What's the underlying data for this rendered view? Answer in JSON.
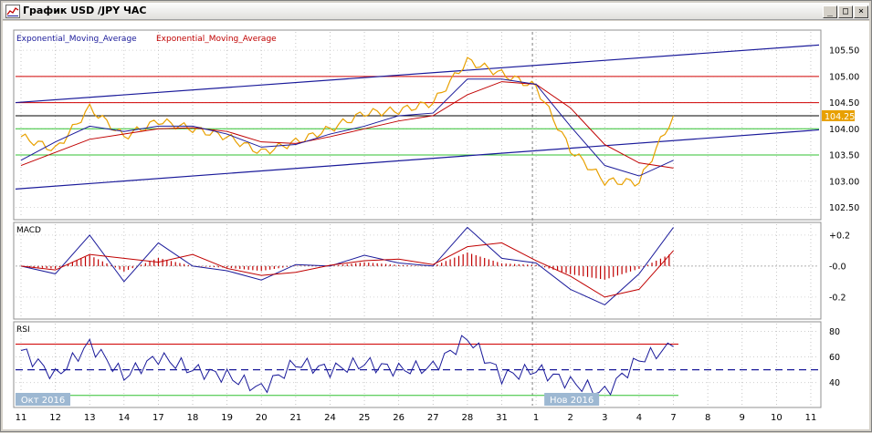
{
  "window": {
    "title": "График USD /JPY  ЧАС",
    "min_glyph": "_",
    "max_glyph": "□",
    "close_glyph": "×"
  },
  "colors": {
    "price": "#e8a000",
    "ema_fast": "#1a1a9a",
    "ema_slow": "#c00000",
    "channel": "#1a1a9a",
    "level_red": "#d00000",
    "level_green": "#30c030",
    "current_price_bg": "#e8a000",
    "rsi_line": "#1a1a9a",
    "rsi_overbought": "#c000c0",
    "rsi_oversold": "#00b000",
    "macd_hist": "#c00000"
  },
  "price_panel": {
    "legend_fast": "Exponential_Moving_Average",
    "legend_slow": "Exponential_Moving_Average",
    "y_ticks": [
      "105.50",
      "105.00",
      "104.50",
      "104.00",
      "103.50",
      "103.00",
      "102.50"
    ],
    "y_tick_values": [
      105.5,
      105.0,
      104.5,
      104.0,
      103.5,
      103.0,
      102.5
    ],
    "current_price": "104.25",
    "current_price_value": 104.25,
    "ylim": [
      102.3,
      105.85
    ],
    "red_levels": [
      105.0,
      104.5
    ],
    "black_level": 104.25,
    "green_levels": [
      104.0,
      103.5
    ]
  },
  "macd_panel": {
    "label": "MACD",
    "y_ticks": [
      "+0.2",
      "-0.0",
      "-0.2"
    ],
    "y_tick_values": [
      0.2,
      0.0,
      -0.2
    ],
    "ylim": [
      -0.33,
      0.27
    ]
  },
  "rsi_panel": {
    "label": "RSI",
    "y_ticks": [
      "80",
      "60",
      "40"
    ],
    "y_tick_values": [
      80,
      60,
      40
    ],
    "ylim": [
      22,
      86
    ],
    "upper_level": 70,
    "lower_level": 30,
    "mid_level": 50
  },
  "time_axis": {
    "month_labels": [
      {
        "text": "Окт 2016",
        "slot": 0
      },
      {
        "text": "Нов 2016",
        "slot": 15.4
      }
    ],
    "day_labels": [
      "11",
      "12",
      "13",
      "14",
      "17",
      "18",
      "19",
      "20",
      "21",
      "24",
      "25",
      "26",
      "27",
      "28",
      "31",
      "1",
      "2",
      "3",
      "4",
      "7",
      "8",
      "9",
      "10",
      "11"
    ]
  },
  "chart_data": {
    "type": "line",
    "title": "График USD /JPY  ЧАС",
    "x": [
      "11",
      "12",
      "13",
      "14",
      "17",
      "18",
      "19",
      "20",
      "21",
      "24",
      "25",
      "26",
      "27",
      "28",
      "31",
      "1",
      "2",
      "3",
      "4",
      "7"
    ],
    "series": [
      {
        "name": "USD/JPY",
        "values": [
          103.85,
          103.6,
          104.4,
          103.85,
          104.15,
          104.0,
          103.85,
          103.55,
          103.75,
          104.0,
          104.3,
          104.35,
          104.5,
          105.3,
          105.05,
          104.8,
          103.6,
          103.0,
          102.98,
          104.25
        ]
      },
      {
        "name": "Exponential_Moving_Average",
        "values": [
          103.4,
          103.75,
          104.05,
          103.95,
          104.05,
          104.05,
          103.9,
          103.65,
          103.7,
          103.9,
          104.05,
          104.25,
          104.3,
          104.95,
          104.95,
          104.85,
          104.05,
          103.3,
          103.1,
          103.4
        ]
      },
      {
        "name": "Exponential_Moving_Average",
        "values": [
          103.3,
          103.55,
          103.8,
          103.9,
          104.0,
          104.02,
          103.95,
          103.75,
          103.72,
          103.85,
          104.0,
          104.15,
          104.25,
          104.65,
          104.9,
          104.85,
          104.4,
          103.7,
          103.35,
          103.25
        ]
      }
    ],
    "macd": [
      0.0,
      -0.05,
      0.2,
      -0.1,
      0.15,
      0.0,
      -0.03,
      -0.09,
      0.01,
      0.0,
      0.07,
      0.02,
      0.0,
      0.25,
      0.05,
      0.02,
      -0.15,
      -0.25,
      -0.05,
      0.25
    ],
    "rsi": [
      65,
      45,
      70,
      45,
      60,
      50,
      45,
      35,
      55,
      50,
      55,
      50,
      52,
      75,
      45,
      50,
      40,
      32,
      58,
      68
    ]
  }
}
